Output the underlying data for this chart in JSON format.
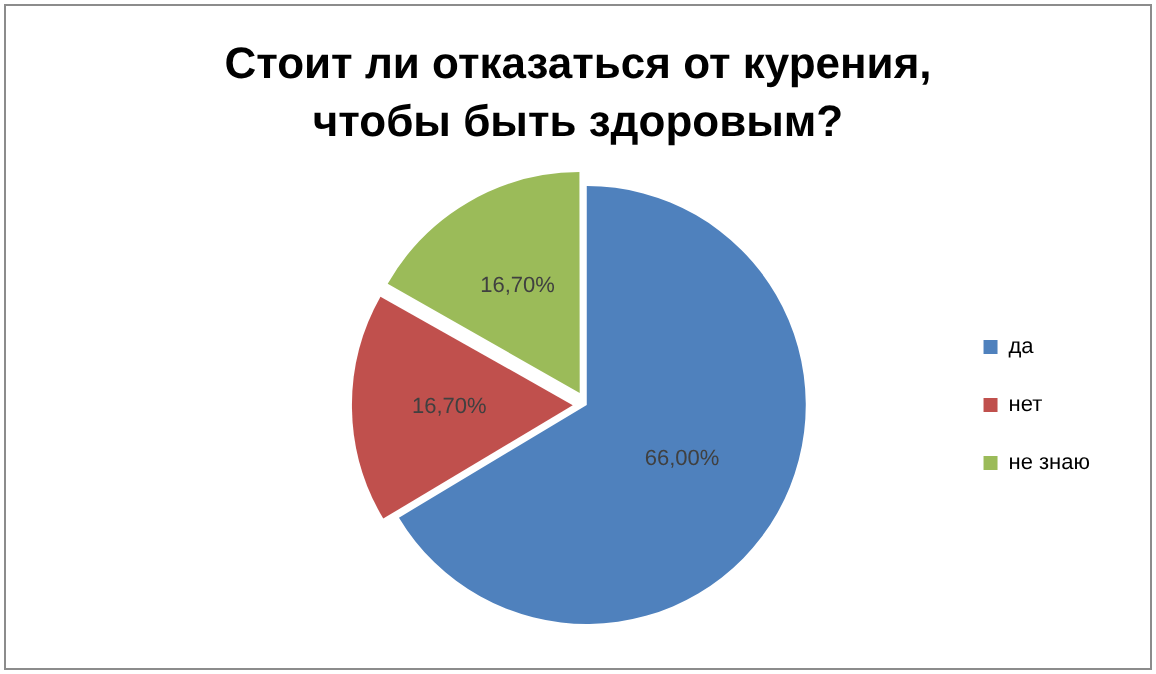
{
  "chart_data": {
    "type": "pie",
    "title": "Стоит ли отказаться от курения, чтобы быть здоровым?",
    "categories": [
      "да",
      "нет",
      "не знаю"
    ],
    "values": [
      66,
      16.7,
      16.7
    ],
    "value_labels": [
      "66,00%",
      "16,70%",
      "16,70%"
    ],
    "colors": [
      "#4f81bd",
      "#c0504d",
      "#9bbb59"
    ],
    "legend": "right"
  }
}
